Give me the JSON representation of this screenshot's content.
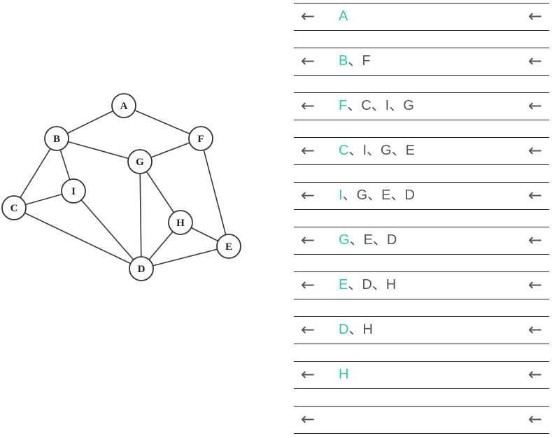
{
  "graph": {
    "nodes": [
      {
        "id": "A",
        "label": "A"
      },
      {
        "id": "B",
        "label": "B"
      },
      {
        "id": "F",
        "label": "F"
      },
      {
        "id": "G",
        "label": "G"
      },
      {
        "id": "I",
        "label": "I"
      },
      {
        "id": "C",
        "label": "C"
      },
      {
        "id": "H",
        "label": "H"
      },
      {
        "id": "E",
        "label": "E"
      },
      {
        "id": "D",
        "label": "D"
      }
    ],
    "edges": [
      [
        "A",
        "B"
      ],
      [
        "A",
        "F"
      ],
      [
        "B",
        "G"
      ],
      [
        "B",
        "I"
      ],
      [
        "B",
        "C"
      ],
      [
        "F",
        "G"
      ],
      [
        "F",
        "E"
      ],
      [
        "C",
        "I"
      ],
      [
        "C",
        "D"
      ],
      [
        "I",
        "D"
      ],
      [
        "G",
        "D"
      ],
      [
        "G",
        "H"
      ],
      [
        "H",
        "E"
      ],
      [
        "H",
        "D"
      ],
      [
        "D",
        "E"
      ]
    ]
  },
  "queue": {
    "separator": "、",
    "arrow_glyph": "←",
    "colors": {
      "head": "#33c9a8",
      "text": "#555555"
    },
    "rows": [
      [
        "A"
      ],
      [
        "B",
        "F"
      ],
      [
        "F",
        "C",
        "I",
        "G"
      ],
      [
        "C",
        "I",
        "G",
        "E"
      ],
      [
        "I",
        "G",
        "E",
        "D"
      ],
      [
        "G",
        "E",
        "D"
      ],
      [
        "E",
        "D",
        "H"
      ],
      [
        "D",
        "H"
      ],
      [
        "H"
      ],
      []
    ]
  }
}
